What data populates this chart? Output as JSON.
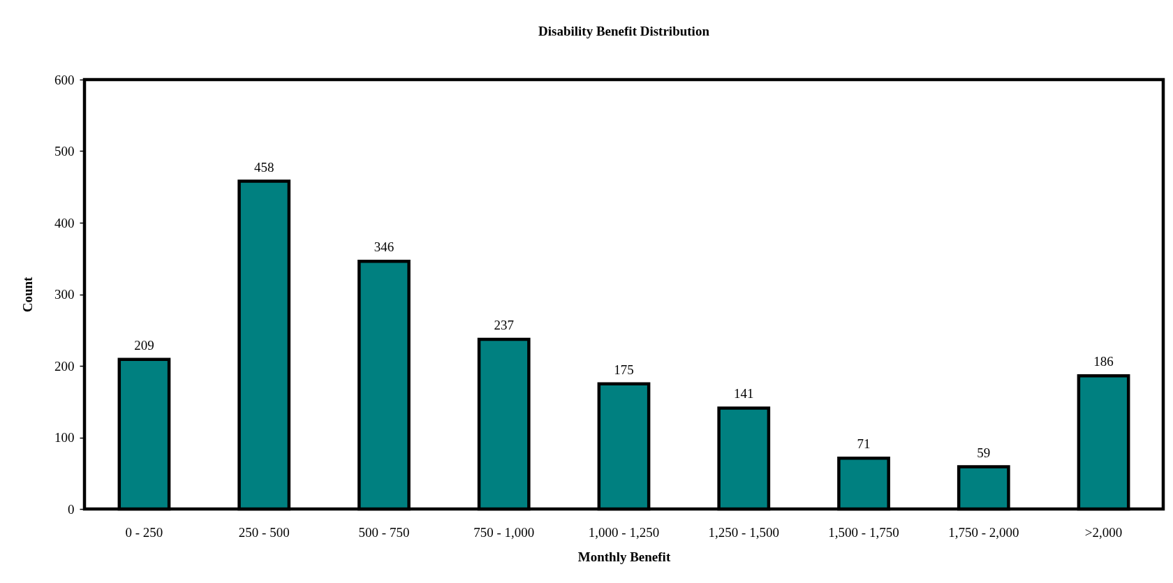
{
  "chart_data": {
    "type": "bar",
    "title": "Disability Benefit Distribution",
    "xlabel": "Monthly Benefit",
    "ylabel": "Count",
    "categories": [
      "0 - 250",
      "250 - 500",
      "500 - 750",
      "750 - 1,000",
      "1,000 - 1,250",
      "1,250 - 1,500",
      "1,500 - 1,750",
      "1,750 - 2,000",
      ">2,000"
    ],
    "values": [
      209,
      458,
      346,
      237,
      175,
      141,
      71,
      59,
      186
    ],
    "color": "#008080",
    "ylim": [
      0,
      600
    ],
    "yticks": [
      0,
      100,
      200,
      300,
      400,
      500,
      600
    ],
    "data_labels": true
  }
}
